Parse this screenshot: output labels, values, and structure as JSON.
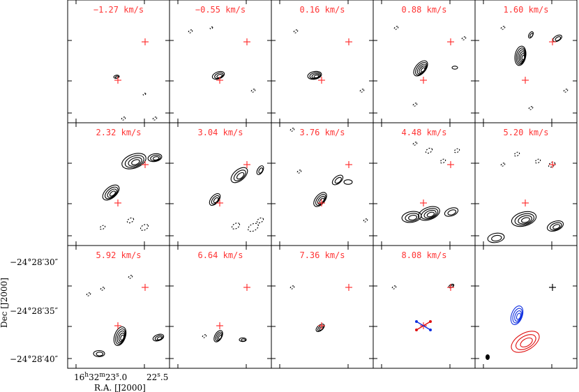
{
  "chart_data": {
    "type": "channel-map",
    "grid": {
      "rows": 3,
      "cols": 5
    },
    "panels": [
      {
        "velocity": "−1.27 km/s"
      },
      {
        "velocity": "−0.55 km/s"
      },
      {
        "velocity": "0.16 km/s"
      },
      {
        "velocity": "0.88 km/s"
      },
      {
        "velocity": "1.60 km/s"
      },
      {
        "velocity": "2.32 km/s"
      },
      {
        "velocity": "3.04 km/s"
      },
      {
        "velocity": "3.76 km/s"
      },
      {
        "velocity": "4.48 km/s"
      },
      {
        "velocity": "5.20 km/s"
      },
      {
        "velocity": "5.92 km/s"
      },
      {
        "velocity": "6.64 km/s"
      },
      {
        "velocity": "7.36 km/s"
      },
      {
        "velocity": "8.08 km/s"
      },
      {
        "velocity": ""
      }
    ],
    "y_ticks": [
      "−24°28′30″",
      "−24°28′35″",
      "−24°28′40″"
    ],
    "y_tick_values_arcsec": [
      30,
      35,
      40
    ],
    "x_tick_primary": "16h32m23.0s",
    "x_tick_secondary": "22.5s",
    "x_tick_values_s": [
      23.0,
      22.5
    ],
    "xlabel": "R.A. [J2000]",
    "ylabel": "Dec [J2000]",
    "colors": {
      "label": "#ff3333",
      "blue": "#1030e0",
      "red": "#e01010",
      "contour": "#000000"
    }
  }
}
